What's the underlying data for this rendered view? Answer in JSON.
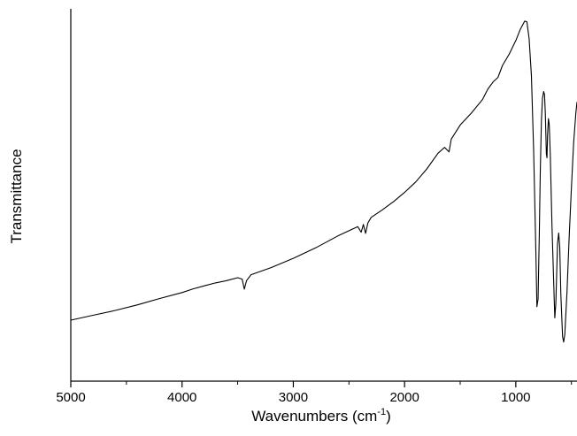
{
  "chart_data": {
    "type": "line",
    "title": "",
    "xlabel": "Wavenumbers (cm",
    "xlabel_sup": "-1",
    "xlabel_close": ")",
    "ylabel": "Transmittance",
    "xlim": [
      5000,
      450
    ],
    "x_reversed": true,
    "ylim": [
      0,
      1
    ],
    "y_tick_labels_shown": false,
    "x_ticks": [
      5000,
      4000,
      3000,
      2000,
      1000
    ],
    "x_tick_labels": [
      "5000",
      "4000",
      "3000",
      "2000",
      "1000"
    ],
    "grid": false,
    "legend": "none",
    "line_color": "#000000",
    "series": [
      {
        "points": [
          [
            5000,
            0.164
          ],
          [
            4800,
            0.177
          ],
          [
            4600,
            0.19
          ],
          [
            4400,
            0.205
          ],
          [
            4200,
            0.222
          ],
          [
            4000,
            0.238
          ],
          [
            3900,
            0.248
          ],
          [
            3800,
            0.256
          ],
          [
            3700,
            0.264
          ],
          [
            3600,
            0.27
          ],
          [
            3500,
            0.278
          ],
          [
            3460,
            0.274
          ],
          [
            3440,
            0.247
          ],
          [
            3420,
            0.27
          ],
          [
            3380,
            0.286
          ],
          [
            3200,
            0.305
          ],
          [
            3000,
            0.33
          ],
          [
            2800,
            0.358
          ],
          [
            2600,
            0.39
          ],
          [
            2420,
            0.415
          ],
          [
            2390,
            0.4
          ],
          [
            2370,
            0.421
          ],
          [
            2350,
            0.397
          ],
          [
            2330,
            0.425
          ],
          [
            2300,
            0.44
          ],
          [
            2200,
            0.46
          ],
          [
            2100,
            0.482
          ],
          [
            2000,
            0.507
          ],
          [
            1900,
            0.535
          ],
          [
            1800,
            0.57
          ],
          [
            1700,
            0.612
          ],
          [
            1640,
            0.628
          ],
          [
            1600,
            0.616
          ],
          [
            1580,
            0.65
          ],
          [
            1500,
            0.688
          ],
          [
            1400,
            0.72
          ],
          [
            1300,
            0.756
          ],
          [
            1250,
            0.785
          ],
          [
            1200,
            0.805
          ],
          [
            1160,
            0.816
          ],
          [
            1120,
            0.848
          ],
          [
            1060,
            0.878
          ],
          [
            1000,
            0.915
          ],
          [
            960,
            0.945
          ],
          [
            920,
            0.967
          ],
          [
            900,
            0.965
          ],
          [
            880,
            0.92
          ],
          [
            860,
            0.82
          ],
          [
            840,
            0.62
          ],
          [
            820,
            0.35
          ],
          [
            810,
            0.2
          ],
          [
            800,
            0.22
          ],
          [
            790,
            0.38
          ],
          [
            780,
            0.56
          ],
          [
            770,
            0.7
          ],
          [
            760,
            0.76
          ],
          [
            750,
            0.778
          ],
          [
            742,
            0.77
          ],
          [
            735,
            0.72
          ],
          [
            725,
            0.61
          ],
          [
            720,
            0.6
          ],
          [
            715,
            0.66
          ],
          [
            707,
            0.705
          ],
          [
            700,
            0.69
          ],
          [
            690,
            0.61
          ],
          [
            675,
            0.42
          ],
          [
            660,
            0.27
          ],
          [
            650,
            0.17
          ],
          [
            640,
            0.21
          ],
          [
            625,
            0.37
          ],
          [
            615,
            0.398
          ],
          [
            605,
            0.36
          ],
          [
            595,
            0.23
          ],
          [
            580,
            0.12
          ],
          [
            570,
            0.105
          ],
          [
            560,
            0.125
          ],
          [
            540,
            0.24
          ],
          [
            520,
            0.39
          ],
          [
            500,
            0.52
          ],
          [
            480,
            0.64
          ],
          [
            460,
            0.72
          ],
          [
            450,
            0.75
          ]
        ]
      }
    ]
  }
}
